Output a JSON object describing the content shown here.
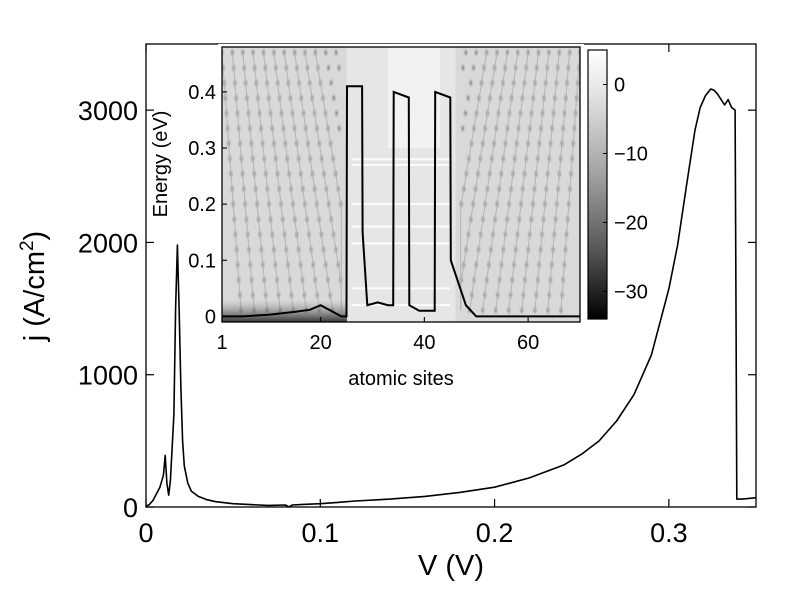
{
  "chart_data": [
    {
      "id": "main",
      "type": "line",
      "xlabel": "V (V)",
      "ylabel_prefix": "j (A/cm",
      "ylabel_sup": "2",
      "ylabel_suffix": ")",
      "xlim": [
        0,
        0.35
      ],
      "ylim": [
        0,
        3500
      ],
      "xticks": [
        0,
        0.1,
        0.2,
        0.3
      ],
      "xtick_labels": [
        "0",
        "0.1",
        "0.2",
        "0.3"
      ],
      "yticks": [
        0,
        1000,
        2000,
        3000
      ],
      "ytick_labels": [
        "0",
        "1000",
        "2000",
        "3000"
      ],
      "grid": false,
      "series": [
        {
          "x": [
            0,
            0.002,
            0.004,
            0.006,
            0.008,
            0.01,
            0.011,
            0.012,
            0.013,
            0.014,
            0.016,
            0.017,
            0.018,
            0.019,
            0.02,
            0.021,
            0.022,
            0.024,
            0.026,
            0.03,
            0.035,
            0.04,
            0.05,
            0.06,
            0.07,
            0.08,
            0.082,
            0.084,
            0.09,
            0.1,
            0.11,
            0.12,
            0.14,
            0.16,
            0.18,
            0.2,
            0.22,
            0.24,
            0.25,
            0.26,
            0.27,
            0.28,
            0.29,
            0.3,
            0.305,
            0.31,
            0.315,
            0.318,
            0.321,
            0.324,
            0.326,
            0.328,
            0.33,
            0.332,
            0.334,
            0.336,
            0.338,
            0.3385,
            0.339,
            0.342,
            0.346,
            0.35
          ],
          "y": [
            5,
            20,
            50,
            100,
            150,
            240,
            390,
            180,
            90,
            200,
            700,
            1500,
            1980,
            1500,
            900,
            500,
            310,
            180,
            120,
            80,
            55,
            40,
            25,
            18,
            12,
            15,
            0,
            15,
            20,
            25,
            35,
            45,
            60,
            80,
            110,
            150,
            220,
            320,
            400,
            500,
            650,
            850,
            1150,
            1650,
            1980,
            2420,
            2850,
            3020,
            3110,
            3160,
            3150,
            3120,
            3080,
            3040,
            3080,
            3020,
            3000,
            1500,
            60,
            60,
            65,
            70
          ]
        }
      ]
    },
    {
      "id": "inset",
      "type": "heatmap",
      "xlabel": "atomic sites",
      "ylabel": "Energy (eV)",
      "xlim": [
        1,
        70
      ],
      "ylim": [
        -0.01,
        0.48
      ],
      "xticks": [
        1,
        20,
        40,
        60
      ],
      "xtick_labels": [
        "1",
        "20",
        "40",
        "60"
      ],
      "yticks": [
        0,
        0.1,
        0.2,
        0.3,
        0.4
      ],
      "ytick_labels": [
        "0",
        "0.1",
        "0.2",
        "0.3",
        "0.4"
      ],
      "colorbar": {
        "range": [
          -34,
          5
        ],
        "ticks": [
          0,
          -10,
          -20,
          -30
        ],
        "tick_labels": [
          "0",
          "−10",
          "−20",
          "−30"
        ],
        "colormap": "gray"
      },
      "potential_profile": {
        "x": [
          1,
          5,
          10,
          15,
          18,
          20,
          22,
          24,
          25,
          25.1,
          28,
          28.1,
          29,
          31,
          33,
          34,
          34.1,
          37,
          37.1,
          39,
          42,
          42.1,
          45,
          45.1,
          48,
          50,
          55,
          60,
          65,
          70
        ],
        "y": [
          0.0,
          0.0,
          0.003,
          0.008,
          0.012,
          0.02,
          0.01,
          0.0,
          0.0,
          0.41,
          0.41,
          0.15,
          0.02,
          0.025,
          0.02,
          0.02,
          0.4,
          0.39,
          0.02,
          0.01,
          0.01,
          0.4,
          0.39,
          0.1,
          0.02,
          0.0,
          0.0,
          0.0,
          0.0,
          0.0
        ]
      }
    }
  ]
}
